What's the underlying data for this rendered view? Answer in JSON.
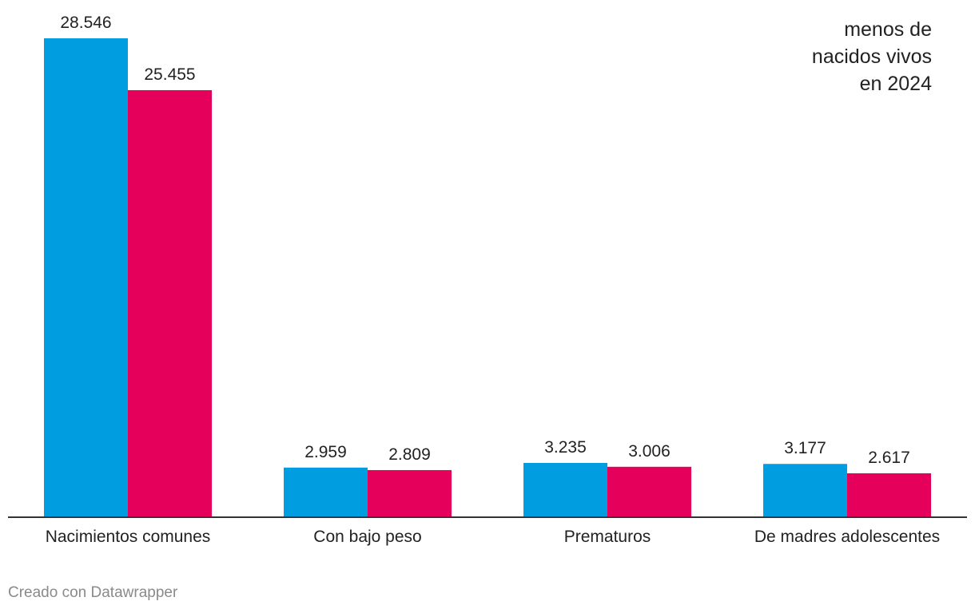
{
  "chart_data": {
    "type": "bar",
    "categories": [
      "Nacimientos comunes",
      "Con bajo peso",
      "Prematuros",
      "De madres adolescentes"
    ],
    "series": [
      {
        "values": [
          28546,
          2959,
          3235,
          3177
        ],
        "labels": [
          "28.546",
          "2.959",
          "3.235",
          "3.177"
        ],
        "color": "#009ee0"
      },
      {
        "values": [
          25455,
          2809,
          3006,
          2617
        ],
        "labels": [
          "25.455",
          "2.809",
          "3.006",
          "2.617"
        ],
        "color": "#e5005b"
      }
    ],
    "ylim": [
      0,
      28546
    ],
    "grid": false,
    "annotation": [
      "menos de",
      "nacidos vivos",
      "en 2024"
    ]
  },
  "footer": "Creado con Datawrapper"
}
